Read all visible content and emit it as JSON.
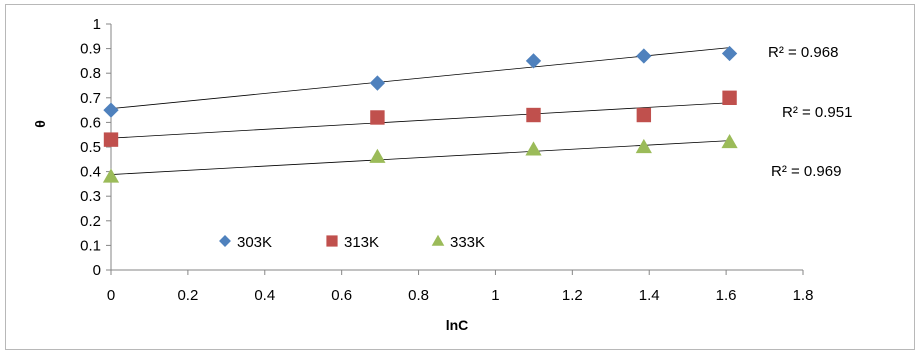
{
  "chart_data": {
    "type": "scatter",
    "xlabel": "lnC",
    "ylabel": "θ",
    "xlim": [
      0,
      1.8
    ],
    "ylim": [
      0,
      1
    ],
    "xticks": [
      "0",
      "0.2",
      "0.4",
      "0.6",
      "0.8",
      "1",
      "1.2",
      "1.4",
      "1.6",
      "1.8"
    ],
    "yticks": [
      "0",
      "0.1",
      "0.2",
      "0.3",
      "0.4",
      "0.5",
      "0.6",
      "0.7",
      "0.8",
      "0.9",
      "1"
    ],
    "grid": false,
    "legend_position": "bottom-left",
    "series": [
      {
        "name": "303K",
        "marker": "diamond",
        "color": "#4F81BD",
        "x": [
          0,
          0.693,
          1.099,
          1.386,
          1.609
        ],
        "y": [
          0.65,
          0.76,
          0.85,
          0.87,
          0.88
        ],
        "trendline": [
          0.656,
          0.904
        ],
        "r2_label": "R² = 0.968"
      },
      {
        "name": "313K",
        "marker": "square",
        "color": "#C0504D",
        "x": [
          0,
          0.693,
          1.099,
          1.386,
          1.609
        ],
        "y": [
          0.53,
          0.62,
          0.63,
          0.63,
          0.7
        ],
        "trendline": [
          0.536,
          0.68
        ],
        "r2_label": "R² = 0.951"
      },
      {
        "name": "333K",
        "marker": "triangle",
        "color": "#9BBB59",
        "x": [
          0,
          0.693,
          1.099,
          1.386,
          1.609
        ],
        "y": [
          0.38,
          0.46,
          0.49,
          0.5,
          0.52
        ],
        "trendline": [
          0.388,
          0.526
        ],
        "r2_label": "R² = 0.969"
      }
    ]
  }
}
